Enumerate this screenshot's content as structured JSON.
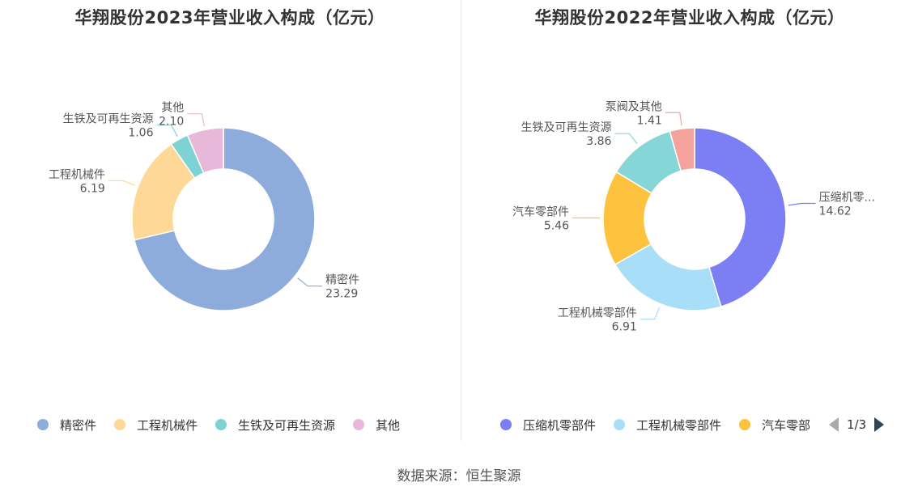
{
  "chart_data": [
    {
      "type": "pie",
      "title": "华翔股份2023年营业收入构成（亿元）",
      "categories": [
        "精密件",
        "工程机械件",
        "生铁及可再生资源",
        "其他"
      ],
      "values": [
        23.29,
        6.19,
        1.06,
        2.1
      ],
      "value_labels": [
        "23.29",
        "6.19",
        "1.06",
        "2.10"
      ],
      "colors": [
        "#8eacdb",
        "#fed896",
        "#7dd3d3",
        "#e7b8d9"
      ],
      "legend": {
        "position": "bottom",
        "items": [
          "精密件",
          "工程机械件",
          "生铁及可再生资源",
          "其他"
        ]
      }
    },
    {
      "type": "pie",
      "title": "华翔股份2022年营业收入构成（亿元）",
      "categories": [
        "压缩机零部件",
        "工程机械零部件",
        "汽车零部件",
        "生铁及可再生资源",
        "泵阀及其他"
      ],
      "slice_labels": [
        "压缩机零...",
        "工程机械零部件",
        "汽车零部件",
        "生铁及可再生资源",
        "泵阀及其他"
      ],
      "values": [
        14.62,
        6.91,
        5.46,
        3.86,
        1.41
      ],
      "value_labels": [
        "14.62",
        "6.91",
        "5.46",
        "3.86",
        "1.41"
      ],
      "colors": [
        "#7b7ff3",
        "#a9def8",
        "#fec33e",
        "#86d6d8",
        "#f6a29c"
      ],
      "legend": {
        "position": "bottom",
        "items": [
          "压缩机零部件",
          "工程机械零部件",
          "汽车零部"
        ],
        "page": "1/3"
      }
    }
  ],
  "footer": {
    "source": "数据来源：恒生聚源"
  }
}
